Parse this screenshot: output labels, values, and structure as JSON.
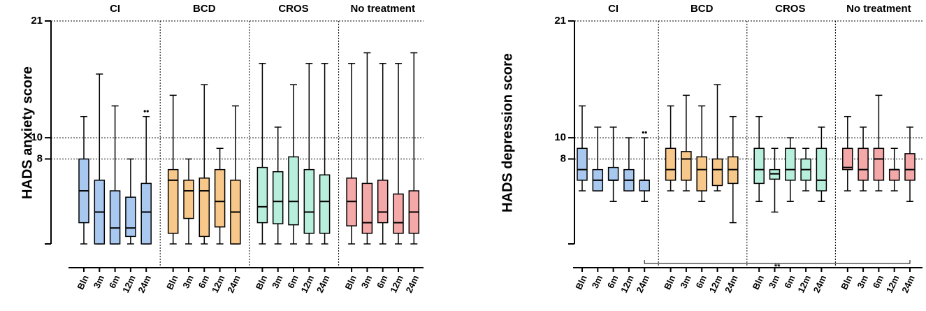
{
  "chart_data": [
    {
      "type": "box",
      "ylabel": "HADS anxiety score",
      "ylim": [
        0,
        21
      ],
      "yticks": [
        8,
        10,
        21
      ],
      "grid": true,
      "groups": [
        {
          "name": "CI",
          "color": "#a8c8f0",
          "categories": [
            "Bln",
            "3m",
            "6m",
            "12m",
            "24m"
          ],
          "boxes": [
            {
              "min": 0,
              "q1": 2,
              "median": 5,
              "q3": 8,
              "max": 12
            },
            {
              "min": 0,
              "q1": 0,
              "median": 3,
              "q3": 6,
              "max": 16
            },
            {
              "min": 0,
              "q1": 0,
              "median": 1.5,
              "q3": 5,
              "max": 13
            },
            {
              "min": 0,
              "q1": 0.7,
              "median": 1.5,
              "q3": 4.4,
              "max": 8
            },
            {
              "min": 0,
              "q1": 0,
              "median": 3,
              "q3": 5.7,
              "max": 12,
              "outliers": [
                12.5,
                12.5
              ]
            }
          ]
        },
        {
          "name": "BCD",
          "color": "#f8c88a",
          "categories": [
            "Bln",
            "3m",
            "6m",
            "12m",
            "24m"
          ],
          "boxes": [
            {
              "min": 0,
              "q1": 1,
              "median": 6,
              "q3": 7,
              "max": 14
            },
            {
              "min": 0,
              "q1": 2.4,
              "median": 5,
              "q3": 6,
              "max": 8
            },
            {
              "min": 0,
              "q1": 0.7,
              "median": 5,
              "q3": 6.2,
              "max": 15
            },
            {
              "min": 0,
              "q1": 1.6,
              "median": 4,
              "q3": 7,
              "max": 9
            },
            {
              "min": 0,
              "q1": 0,
              "median": 3,
              "q3": 6,
              "max": 13
            }
          ]
        },
        {
          "name": "CROS",
          "color": "#b8eedc",
          "categories": [
            "Bln",
            "3m",
            "6m",
            "12m",
            "24m"
          ],
          "boxes": [
            {
              "min": 0,
              "q1": 2,
              "median": 3.5,
              "q3": 7.2,
              "max": 17
            },
            {
              "min": 0,
              "q1": 1.9,
              "median": 4,
              "q3": 6.8,
              "max": 11
            },
            {
              "min": 0,
              "q1": 1.8,
              "median": 4,
              "q3": 8.2,
              "max": 15
            },
            {
              "min": 0,
              "q1": 1,
              "median": 3,
              "q3": 7,
              "max": 17
            },
            {
              "min": 0,
              "q1": 1,
              "median": 4,
              "q3": 6.5,
              "max": 17
            }
          ]
        },
        {
          "name": "No treatment",
          "color": "#f4a8a8",
          "categories": [
            "Bln",
            "3m",
            "6m",
            "12m",
            "24m"
          ],
          "boxes": [
            {
              "min": 0,
              "q1": 1.7,
              "median": 4,
              "q3": 6.2,
              "max": 17
            },
            {
              "min": 0,
              "q1": 1,
              "median": 2,
              "q3": 5.7,
              "max": 18
            },
            {
              "min": 0,
              "q1": 2,
              "median": 3,
              "q3": 6,
              "max": 17
            },
            {
              "min": 0,
              "q1": 1,
              "median": 2,
              "q3": 4.7,
              "max": 17
            },
            {
              "min": 0,
              "q1": 1,
              "median": 3,
              "q3": 5,
              "max": 18
            }
          ]
        }
      ]
    },
    {
      "type": "box",
      "ylabel": "HADS depression score",
      "ylim": [
        0,
        21
      ],
      "yticks": [
        8,
        10,
        21
      ],
      "grid": true,
      "annotation": "**",
      "groups": [
        {
          "name": "CI",
          "color": "#a8c8f0",
          "categories": [
            "Bln",
            "3m",
            "6m",
            "12m",
            "24m"
          ],
          "boxes": [
            {
              "min": 5,
              "q1": 6,
              "median": 7,
              "q3": 9,
              "max": 13
            },
            {
              "min": 5,
              "q1": 5,
              "median": 6,
              "q3": 7,
              "max": 11
            },
            {
              "min": 4,
              "q1": 6,
              "median": 6,
              "q3": 7.2,
              "max": 11
            },
            {
              "min": 5,
              "q1": 5,
              "median": 6,
              "q3": 7,
              "max": 10
            },
            {
              "min": 4,
              "q1": 5,
              "median": 6,
              "q3": 6,
              "max": 10,
              "outliers": [
                10.5,
                10.5
              ]
            }
          ]
        },
        {
          "name": "BCD",
          "color": "#f8c88a",
          "categories": [
            "Bln",
            "3m",
            "6m",
            "12m",
            "24m"
          ],
          "boxes": [
            {
              "min": 5,
              "q1": 6,
              "median": 7,
              "q3": 9,
              "max": 13
            },
            {
              "min": 5,
              "q1": 6,
              "median": 8,
              "q3": 8.7,
              "max": 14
            },
            {
              "min": 4,
              "q1": 5,
              "median": 7,
              "q3": 8.2,
              "max": 13
            },
            {
              "min": 5,
              "q1": 5.5,
              "median": 7,
              "q3": 8,
              "max": 15
            },
            {
              "min": 2,
              "q1": 5.7,
              "median": 7,
              "q3": 8.2,
              "max": 12
            }
          ]
        },
        {
          "name": "CROS",
          "color": "#b8eedc",
          "categories": [
            "Bln",
            "3m",
            "6m",
            "12m",
            "24m"
          ],
          "boxes": [
            {
              "min": 4,
              "q1": 5.7,
              "median": 7,
              "q3": 9,
              "max": 12
            },
            {
              "min": 3,
              "q1": 6.1,
              "median": 6.6,
              "q3": 7,
              "max": 9
            },
            {
              "min": 4,
              "q1": 6,
              "median": 7,
              "q3": 9,
              "max": 10
            },
            {
              "min": 5,
              "q1": 6,
              "median": 7,
              "q3": 8,
              "max": 9
            },
            {
              "min": 4,
              "q1": 5,
              "median": 6,
              "q3": 9,
              "max": 11
            }
          ]
        },
        {
          "name": "No treatment",
          "color": "#f4a8a8",
          "categories": [
            "Bln",
            "3m",
            "6m",
            "12m",
            "24m"
          ],
          "boxes": [
            {
              "min": 5,
              "q1": 7,
              "median": 7.2,
              "q3": 9,
              "max": 12
            },
            {
              "min": 5,
              "q1": 6,
              "median": 7,
              "q3": 9,
              "max": 11
            },
            {
              "min": 5,
              "q1": 6,
              "median": 8,
              "q3": 9,
              "max": 14
            },
            {
              "min": 5,
              "q1": 6,
              "median": 7,
              "q3": 7,
              "max": 9
            },
            {
              "min": 4,
              "q1": 6,
              "median": 7,
              "q3": 8.5,
              "max": 11
            }
          ]
        }
      ]
    }
  ]
}
